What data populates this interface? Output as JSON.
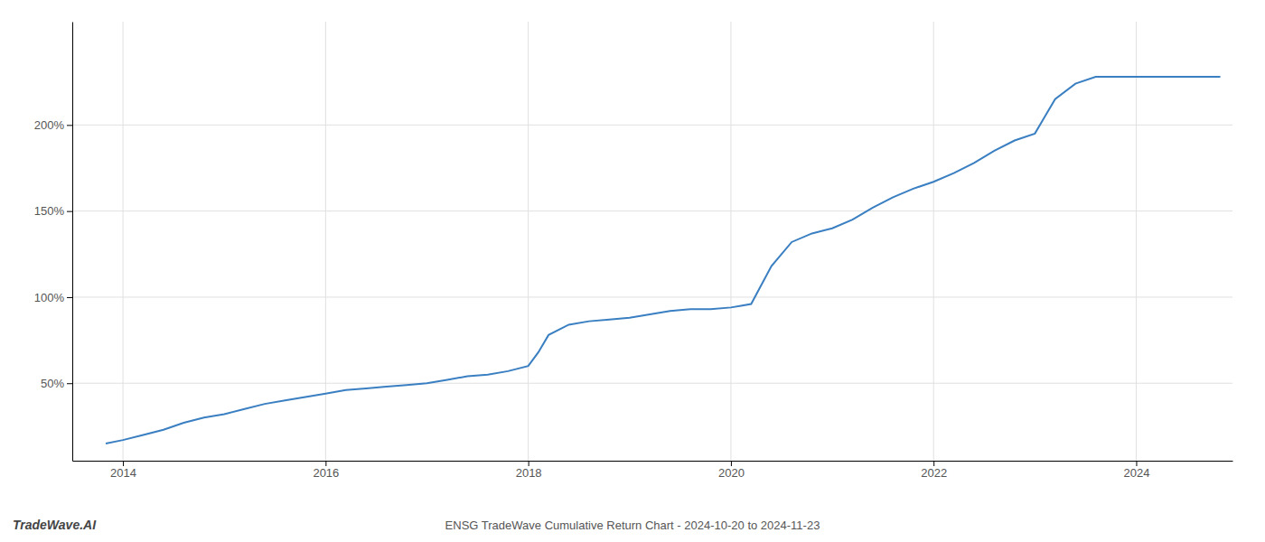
{
  "chart_data": {
    "type": "line",
    "title": "ENSG TradeWave Cumulative Return Chart - 2024-10-20 to 2024-11-23",
    "annotations": [
      "TradeWave.AI"
    ],
    "color": "#3a7fc1",
    "x": [
      2013.83,
      2014.0,
      2014.2,
      2014.4,
      2014.6,
      2014.8,
      2015.0,
      2015.2,
      2015.4,
      2015.6,
      2015.8,
      2016.0,
      2016.2,
      2016.4,
      2016.6,
      2016.8,
      2017.0,
      2017.2,
      2017.4,
      2017.6,
      2017.8,
      2018.0,
      2018.1,
      2018.2,
      2018.4,
      2018.6,
      2018.8,
      2019.0,
      2019.2,
      2019.4,
      2019.6,
      2019.8,
      2020.0,
      2020.1,
      2020.2,
      2020.4,
      2020.6,
      2020.8,
      2021.0,
      2021.2,
      2021.4,
      2021.6,
      2021.8,
      2022.0,
      2022.2,
      2022.4,
      2022.6,
      2022.8,
      2023.0,
      2023.1,
      2023.2,
      2023.4,
      2023.6,
      2023.8,
      2024.0,
      2024.2,
      2024.4,
      2024.6,
      2024.83
    ],
    "values": [
      15,
      17,
      20,
      23,
      27,
      30,
      32,
      35,
      38,
      40,
      42,
      44,
      46,
      47,
      48,
      49,
      50,
      52,
      54,
      55,
      57,
      60,
      68,
      78,
      84,
      86,
      87,
      88,
      90,
      92,
      93,
      93,
      94,
      95,
      96,
      118,
      132,
      137,
      140,
      145,
      152,
      158,
      163,
      167,
      172,
      178,
      185,
      191,
      195,
      205,
      215,
      224,
      228,
      228,
      228,
      228,
      228,
      228,
      228
    ],
    "xlim": [
      2013.5,
      2024.95
    ],
    "ylim": [
      5,
      260
    ],
    "xticks": [
      2014,
      2016,
      2018,
      2020,
      2022,
      2024
    ],
    "yticks": [
      {
        "value": 50,
        "label": "50%"
      },
      {
        "value": 100,
        "label": "100%"
      },
      {
        "value": 150,
        "label": "150%"
      },
      {
        "value": 200,
        "label": "200%"
      }
    ],
    "grid": true
  }
}
